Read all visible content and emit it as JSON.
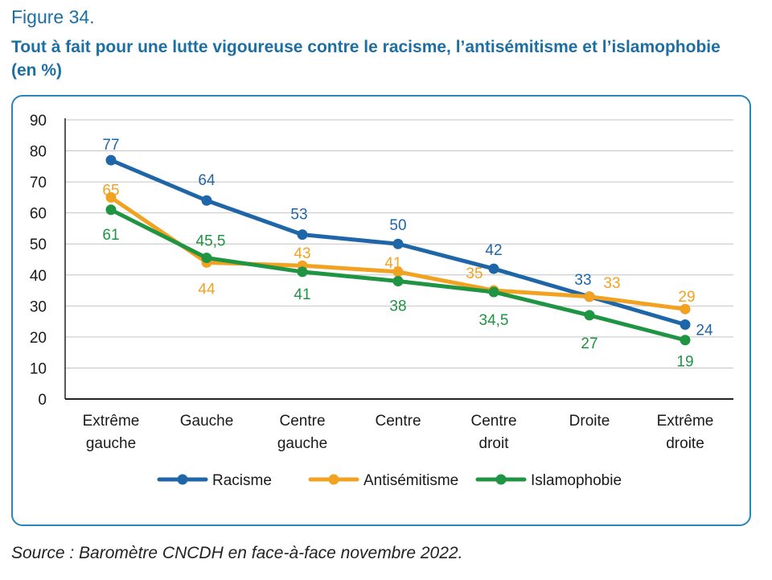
{
  "figure_label": "Figure 34.",
  "title": "Tout à fait pour une lutte vigoureuse contre le racisme, l’antisémitisme et l’islamophobie (en %)",
  "source": "Source : Baromètre CNCDH en face-à-face novembre 2022.",
  "chart_data": {
    "type": "line",
    "title": "Tout à fait pour une lutte vigoureuse contre le racisme, l’antisémitisme et l’islamophobie (en %)",
    "categories": [
      [
        "Extrême",
        "gauche"
      ],
      [
        "Gauche"
      ],
      [
        "Centre",
        "gauche"
      ],
      [
        "Centre"
      ],
      [
        "Centre",
        "droit"
      ],
      [
        "Droite"
      ],
      [
        "Extrême",
        "droite"
      ]
    ],
    "yticks": [
      "0",
      "10",
      "20",
      "30",
      "40",
      "50",
      "60",
      "70",
      "80",
      "90"
    ],
    "ylim": [
      0,
      90
    ],
    "grid": true,
    "legend_position": "bottom",
    "series": [
      {
        "name": "Racisme",
        "color": "#1f66a8",
        "values": [
          77,
          64,
          53,
          50,
          42,
          33,
          24
        ],
        "labels": [
          "77",
          "64",
          "53",
          "50",
          "42",
          "33",
          "24"
        ]
      },
      {
        "name": "Antisémitisme",
        "color": "#f2a221",
        "values": [
          65,
          44,
          43,
          41,
          35,
          33,
          29
        ],
        "labels": [
          "65",
          "44",
          "43",
          "41",
          "35",
          "33",
          "29"
        ]
      },
      {
        "name": "Islamophobie",
        "color": "#1f9442",
        "values": [
          61,
          45.5,
          41,
          38,
          34.5,
          27,
          19
        ],
        "labels": [
          "61",
          "45,5",
          "41",
          "38",
          "34,5",
          "27",
          "19"
        ]
      }
    ]
  }
}
